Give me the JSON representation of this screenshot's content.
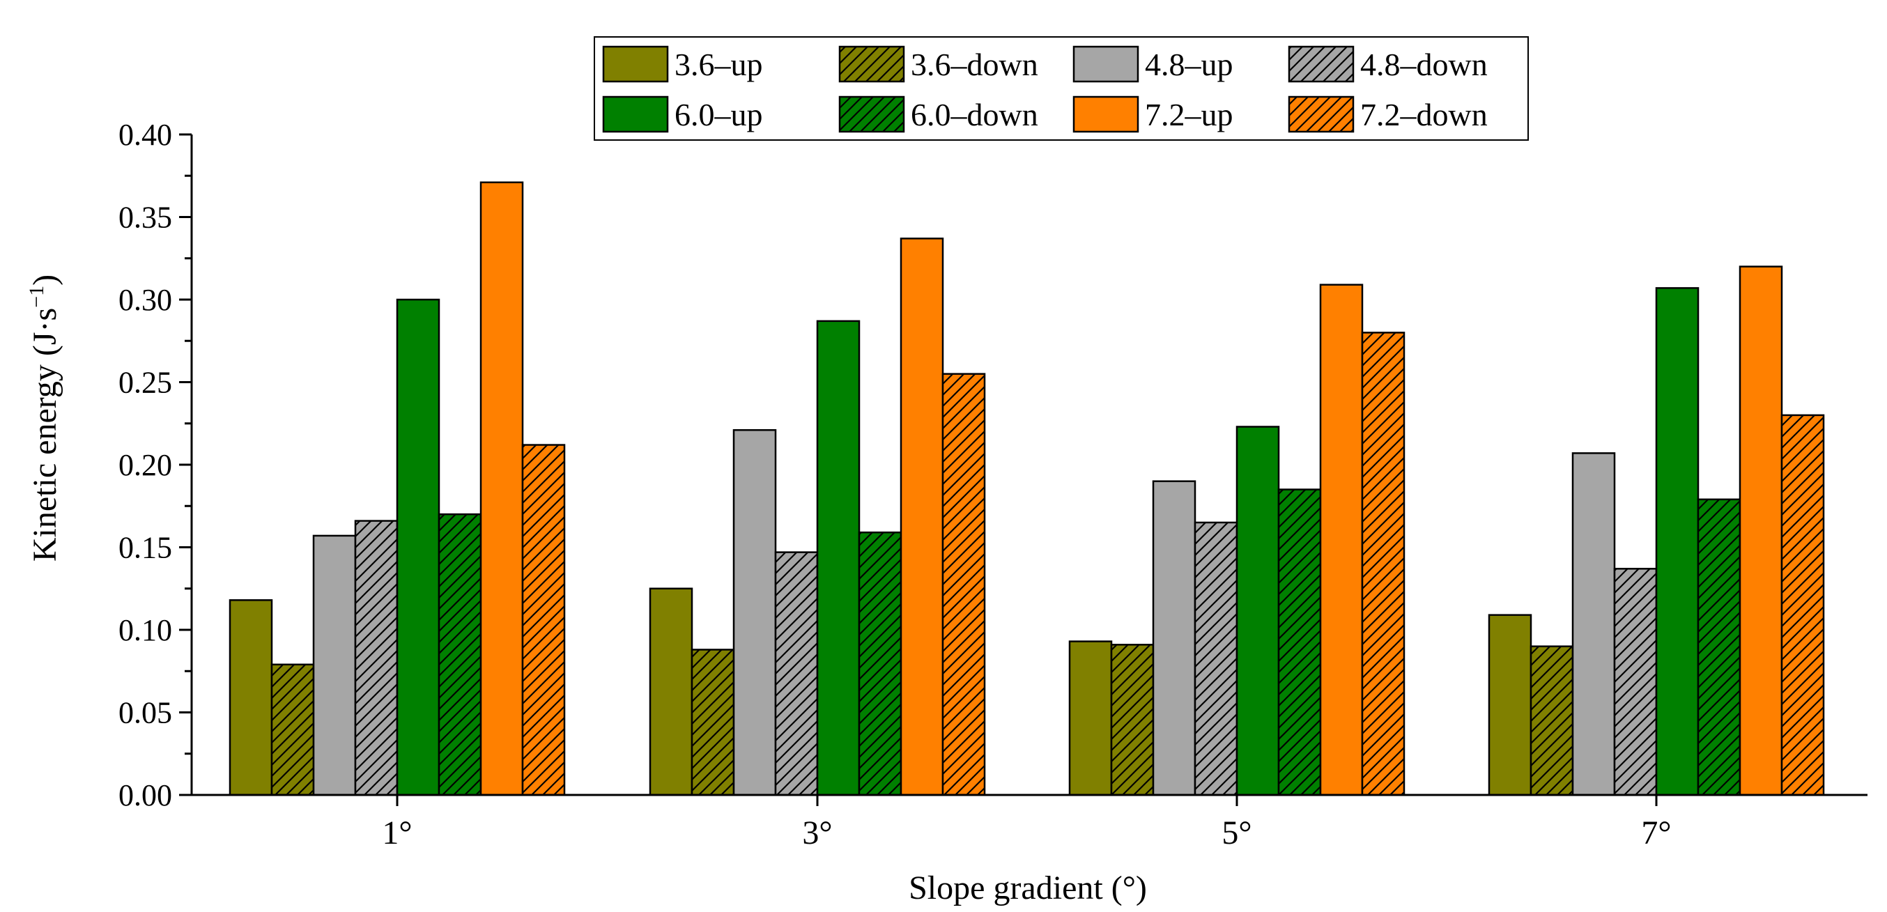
{
  "chart_data": {
    "type": "bar",
    "title": "",
    "xlabel": "Slope gradient (°)",
    "ylabel": {
      "text": "Kinetic energy (J·s",
      "superscript": "−1",
      "closing": ")"
    },
    "categories": [
      "1°",
      "3°",
      "5°",
      "7°"
    ],
    "ylim": [
      0,
      0.4
    ],
    "yticks": [
      "0.00",
      "0.05",
      "0.10",
      "0.15",
      "0.20",
      "0.25",
      "0.30",
      "0.35",
      "0.40"
    ],
    "ytick_values": [
      0,
      0.05,
      0.1,
      0.15,
      0.2,
      0.25,
      0.3,
      0.35,
      0.4
    ],
    "grid": false,
    "legend_position": "top-center",
    "series": [
      {
        "name": "3.6–up",
        "color": "#808000",
        "hatch": false,
        "values": [
          0.118,
          0.125,
          0.093,
          0.109
        ]
      },
      {
        "name": "3.6–down",
        "color": "#808000",
        "hatch": true,
        "values": [
          0.079,
          0.088,
          0.091,
          0.09
        ]
      },
      {
        "name": "4.8–up",
        "color": "#a6a6a6",
        "hatch": false,
        "values": [
          0.157,
          0.221,
          0.19,
          0.207
        ]
      },
      {
        "name": "4.8–down",
        "color": "#a6a6a6",
        "hatch": true,
        "values": [
          0.166,
          0.147,
          0.165,
          0.137
        ]
      },
      {
        "name": "6.0–up",
        "color": "#008000",
        "hatch": false,
        "values": [
          0.3,
          0.287,
          0.223,
          0.307
        ]
      },
      {
        "name": "6.0–down",
        "color": "#008000",
        "hatch": true,
        "values": [
          0.17,
          0.159,
          0.185,
          0.179
        ]
      },
      {
        "name": "7.2–up",
        "color": "#ff8000",
        "hatch": false,
        "values": [
          0.371,
          0.337,
          0.309,
          0.32
        ]
      },
      {
        "name": "7.2–down",
        "color": "#ff8000",
        "hatch": true,
        "values": [
          0.212,
          0.255,
          0.28,
          0.23
        ]
      }
    ]
  }
}
